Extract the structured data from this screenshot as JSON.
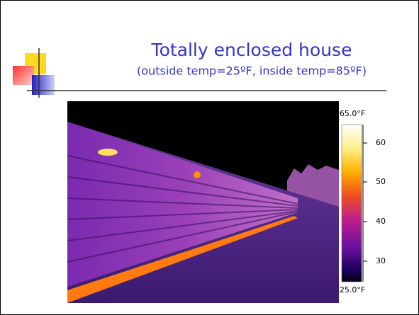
{
  "slide": {
    "title": "Totally enclosed house",
    "subtitle": "(outside temp=25ºF, inside temp=85ºF)",
    "thermal_scale": {
      "max_label": "65.0°F",
      "min_label": "25.0°F",
      "ticks": [
        "60",
        "50",
        "40",
        "30"
      ]
    }
  }
}
